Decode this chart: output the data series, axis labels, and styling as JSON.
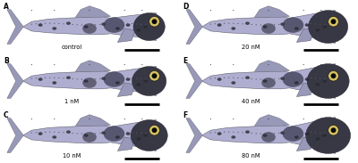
{
  "background_color": "#f5f5f5",
  "panel_labels": [
    "A",
    "B",
    "C",
    "D",
    "E",
    "F"
  ],
  "concentration_labels": [
    "control",
    "1 nM",
    "10 nM",
    "20 nM",
    "40 nM",
    "80 nM"
  ],
  "fig_width": 4.0,
  "fig_height": 1.83,
  "dpi": 100,
  "ncols": 2,
  "nrows": 3,
  "fish_body_color": "#b0aed0",
  "fish_body_color2": "#9898b8",
  "fish_dark_color": "#282830",
  "fish_mid_dark": "#484860",
  "fish_eye_gold": "#d4c060",
  "fish_head_dark": "#383845",
  "scale_bar_color": "#000000",
  "label_color": "#000000",
  "bg_white": "#ffffff",
  "label_fontsize": 5.5,
  "conc_fontsize": 4.8,
  "tick_color": "#111111",
  "lateral_dot_color": "#555568"
}
